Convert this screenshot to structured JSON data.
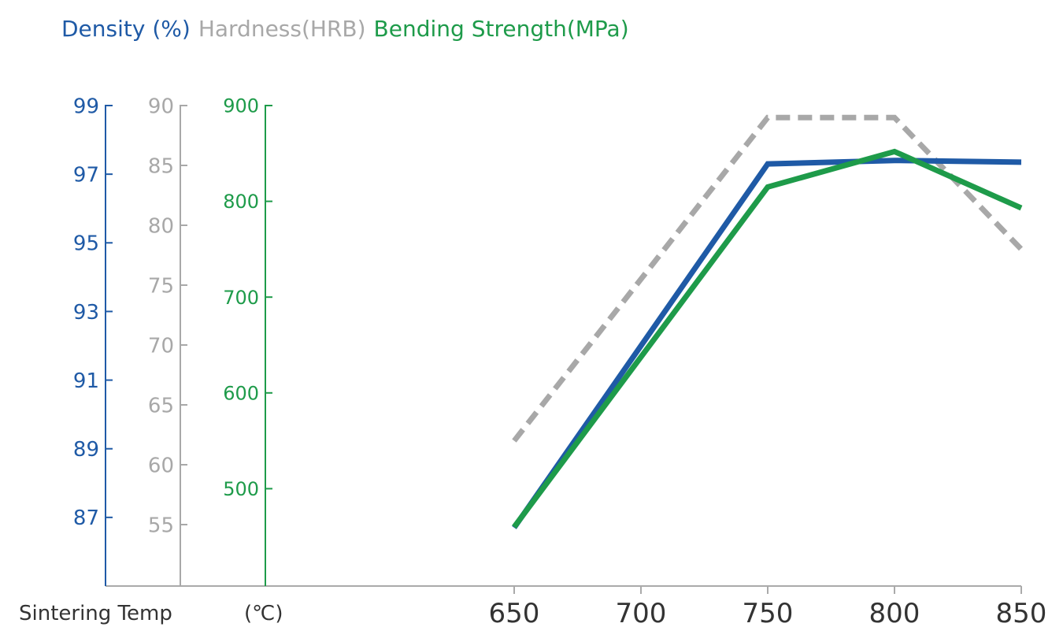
{
  "chart_data": {
    "type": "line",
    "legend": [
      {
        "label": "Density (%)",
        "color": "#1f5aa6"
      },
      {
        "label": "Hardness(HRB)",
        "color": "#a8a8a8"
      },
      {
        "label": "Bending Strength(MPa)",
        "color": "#1e9b4a"
      }
    ],
    "xlabel": "Sintering Temp",
    "xunit": "(℃)",
    "categories": [
      650,
      700,
      750,
      800,
      850
    ],
    "axes": {
      "density": {
        "ticks": [
          99,
          97,
          95,
          93,
          91,
          89,
          87
        ],
        "ylim": [
          85,
          99
        ],
        "color": "#1f5aa6"
      },
      "hardness": {
        "ticks": [
          90,
          85,
          80,
          75,
          70,
          65,
          60,
          55
        ],
        "ylim": [
          50,
          90
        ],
        "color": "#a8a8a8"
      },
      "bending": {
        "ticks": [
          900,
          800,
          700,
          600,
          500
        ],
        "ylim": [
          400,
          900
        ],
        "color": "#1e9b4a"
      }
    },
    "series": [
      {
        "name": "Density (%)",
        "axis": "density",
        "color": "#1f5aa6",
        "style": "solid",
        "x": [
          650,
          750,
          800,
          850
        ],
        "values": [
          86.7,
          97.3,
          97.4,
          97.35
        ]
      },
      {
        "name": "Hardness(HRB)",
        "axis": "hardness",
        "color": "#a8a8a8",
        "style": "dashed",
        "x": [
          650,
          700,
          750,
          800,
          850
        ],
        "values": [
          62,
          75.5,
          89,
          89,
          78
        ]
      },
      {
        "name": "Bending Strength(MPa)",
        "axis": "bending",
        "color": "#1e9b4a",
        "style": "solid",
        "x": [
          650,
          750,
          800,
          850
        ],
        "values": [
          460,
          815,
          852,
          793
        ]
      }
    ]
  }
}
